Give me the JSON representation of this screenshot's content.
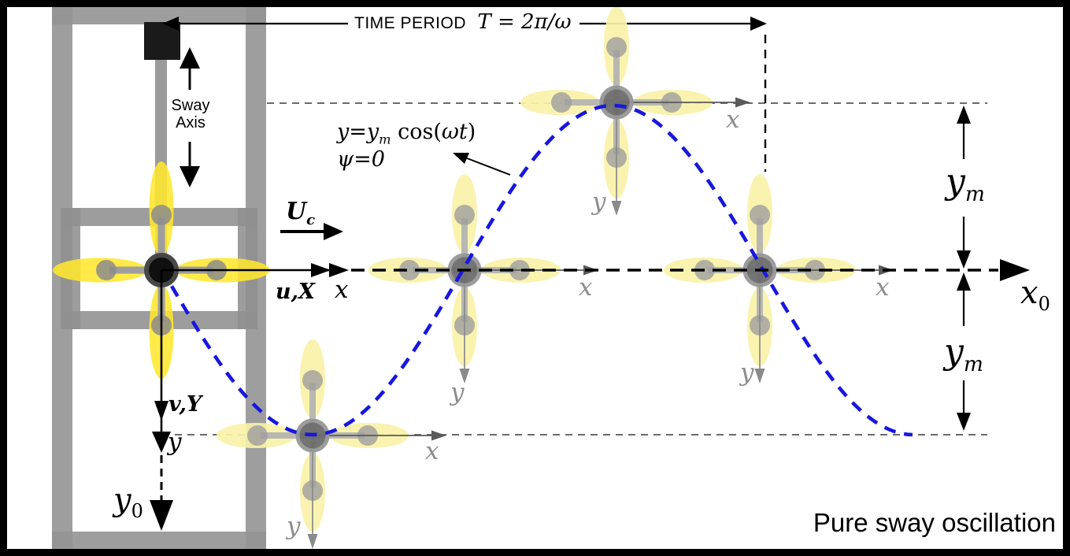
{
  "colors": {
    "curve_blue": "#1717de",
    "petal_yellow_bright": "#ffe72e",
    "petal_yellow_pale": "#f8f2a8",
    "structure_gray": "#949494",
    "ghost_gray": "#a9a9a9",
    "background": "#ffffff",
    "border": "#000000"
  },
  "header": {
    "title_prefix": "TIME PERIOD",
    "title_math": "T = 2π/ω"
  },
  "mechanism": {
    "sway_axis_line1": "Sway",
    "sway_axis_line2": "Axis"
  },
  "axes": {
    "current_label": "U",
    "current_sub": "c",
    "surge_label": "u,X",
    "surge_axis": "x",
    "sway_label": "v,Y",
    "sway_axis": "y",
    "earth_x": "x",
    "earth_x_sub": "0",
    "earth_y": "y",
    "earth_y_sub": "0",
    "amplitude": "y",
    "amplitude_sub": "m",
    "body_x": "x",
    "body_y": "y"
  },
  "equation": {
    "line1_pre": "y=y",
    "line1_sub": "m",
    "line1_fn": " cos(",
    "line1_arg": "ωt",
    "line1_close": ")",
    "line2": "ψ=0"
  },
  "caption": "Pure sway oscillation"
}
